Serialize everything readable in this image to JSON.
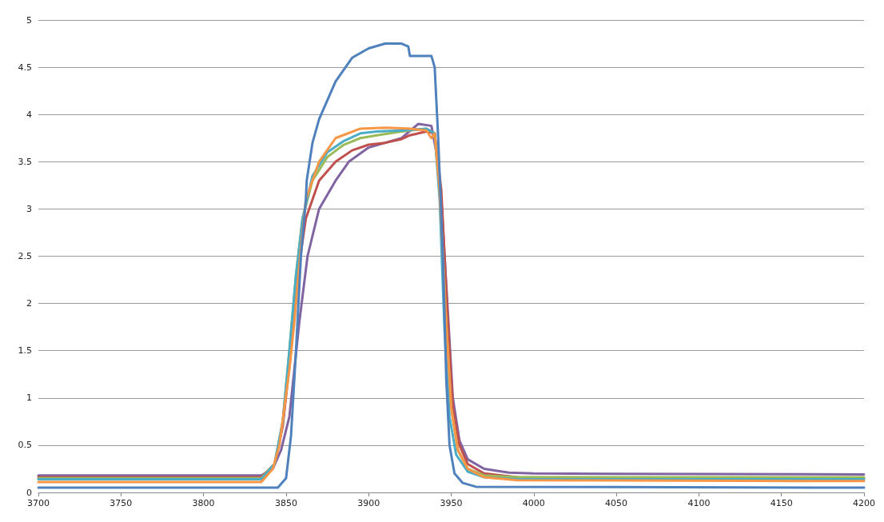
{
  "chart_data": {
    "type": "line",
    "xlim": [
      3700,
      4200
    ],
    "xticks": [
      3700,
      3750,
      3800,
      3850,
      3900,
      3950,
      4000,
      4050,
      4100,
      4150,
      4200
    ],
    "ylim": [
      0,
      5
    ],
    "yticks": [
      0,
      0.5,
      1,
      1.5,
      2,
      2.5,
      3,
      3.5,
      4,
      4.5,
      5
    ],
    "grid": "y",
    "marker": "none",
    "line_style": "solid",
    "series": [
      {
        "color": "#8064a2",
        "x": [
          3700,
          3835,
          3842,
          3847,
          3852,
          3855,
          3858,
          3863,
          3870,
          3880,
          3888,
          3900,
          3910,
          3920,
          3930,
          3938,
          3941,
          3944,
          3948,
          3951,
          3955,
          3960,
          3970,
          3985,
          4000,
          4200
        ],
        "values": [
          0.18,
          0.18,
          0.25,
          0.45,
          0.8,
          1.3,
          1.8,
          2.5,
          3.0,
          3.3,
          3.5,
          3.65,
          3.7,
          3.75,
          3.9,
          3.88,
          3.6,
          3.1,
          1.9,
          1.0,
          0.55,
          0.35,
          0.25,
          0.21,
          0.2,
          0.19
        ]
      },
      {
        "color": "#c0504d",
        "x": [
          3700,
          3835,
          3843,
          3848,
          3853,
          3857,
          3862,
          3870,
          3880,
          3890,
          3900,
          3910,
          3920,
          3925,
          3935,
          3940,
          3944,
          3948,
          3951,
          3955,
          3960,
          3970,
          3990,
          4200
        ],
        "values": [
          0.16,
          0.16,
          0.3,
          0.7,
          1.5,
          2.3,
          2.9,
          3.3,
          3.5,
          3.62,
          3.68,
          3.7,
          3.74,
          3.78,
          3.82,
          3.8,
          3.2,
          1.8,
          0.9,
          0.5,
          0.3,
          0.2,
          0.16,
          0.15
        ]
      },
      {
        "color": "#9bbb59",
        "x": [
          3700,
          3835,
          3843,
          3848,
          3852,
          3856,
          3860,
          3866,
          3875,
          3885,
          3895,
          3905,
          3920,
          3935,
          3940,
          3943,
          3947,
          3950,
          3954,
          3960,
          3970,
          3990,
          4200
        ],
        "values": [
          0.15,
          0.15,
          0.3,
          0.75,
          1.5,
          2.3,
          2.9,
          3.3,
          3.55,
          3.68,
          3.75,
          3.78,
          3.82,
          3.85,
          3.8,
          3.2,
          1.8,
          0.9,
          0.45,
          0.25,
          0.18,
          0.16,
          0.16
        ]
      },
      {
        "color": "#4bacc6",
        "x": [
          3700,
          3835,
          3843,
          3848,
          3852,
          3856,
          3860,
          3866,
          3875,
          3885,
          3895,
          3905,
          3920,
          3935,
          3940,
          3943,
          3946,
          3949,
          3953,
          3960,
          3970,
          3990,
          4200
        ],
        "values": [
          0.14,
          0.14,
          0.3,
          0.75,
          1.5,
          2.3,
          2.9,
          3.35,
          3.6,
          3.72,
          3.8,
          3.82,
          3.83,
          3.85,
          3.8,
          3.1,
          1.7,
          0.8,
          0.4,
          0.22,
          0.16,
          0.14,
          0.14
        ]
      },
      {
        "color": "#f79646",
        "x": [
          3700,
          3835,
          3842,
          3846,
          3849,
          3852,
          3855,
          3859,
          3862,
          3870,
          3880,
          3895,
          3910,
          3925,
          3935,
          3938,
          3940,
          3943,
          3947,
          3950,
          3954,
          3960,
          3970,
          3990,
          4200
        ],
        "values": [
          0.11,
          0.11,
          0.25,
          0.5,
          0.9,
          1.3,
          1.8,
          2.6,
          3.1,
          3.5,
          3.75,
          3.85,
          3.86,
          3.85,
          3.83,
          3.75,
          3.8,
          3.2,
          1.8,
          0.9,
          0.45,
          0.25,
          0.16,
          0.13,
          0.12
        ]
      },
      {
        "color": "#4f81bd",
        "x": [
          3700,
          3845,
          3850,
          3853,
          3856,
          3859,
          3862,
          3862.5,
          3866,
          3870,
          3880,
          3890,
          3900,
          3910,
          3920,
          3924,
          3925,
          3938,
          3940,
          3942,
          3945,
          3947,
          3949,
          3952,
          3957,
          3965,
          4200
        ],
        "values": [
          0.05,
          0.05,
          0.15,
          0.6,
          1.5,
          2.5,
          3.1,
          3.3,
          3.7,
          3.95,
          4.35,
          4.6,
          4.7,
          4.75,
          4.75,
          4.72,
          4.62,
          4.62,
          4.5,
          3.8,
          2.5,
          1.2,
          0.5,
          0.2,
          0.1,
          0.06,
          0.05
        ]
      }
    ]
  }
}
